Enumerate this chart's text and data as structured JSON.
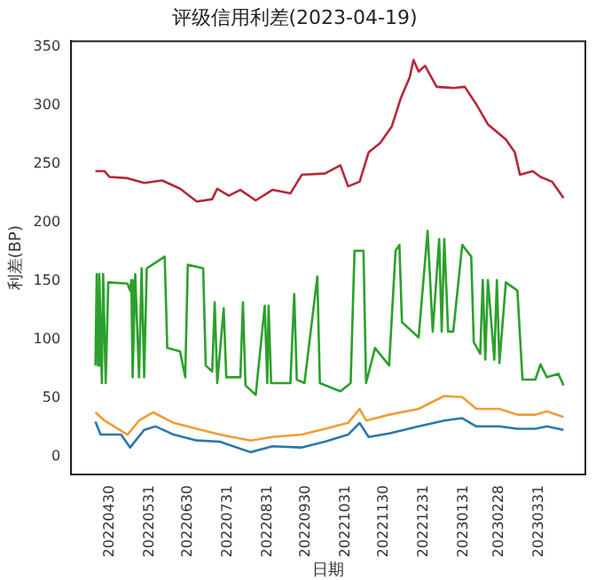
{
  "chart_data": {
    "type": "line",
    "title": "评级信用利差(2023-04-19)",
    "xlabel": "日期",
    "ylabel": "利差(BP)",
    "xlim": [
      "2022-03-31",
      "2023-05-06"
    ],
    "ylim": [
      -15,
      355
    ],
    "xticks": [
      {
        "value": "2022-04-30",
        "label": "20220430"
      },
      {
        "value": "2022-05-31",
        "label": "20220531"
      },
      {
        "value": "2022-06-30",
        "label": "20220630"
      },
      {
        "value": "2022-07-31",
        "label": "20220731"
      },
      {
        "value": "2022-08-31",
        "label": "20220831"
      },
      {
        "value": "2022-09-30",
        "label": "20220930"
      },
      {
        "value": "2022-10-31",
        "label": "20221031"
      },
      {
        "value": "2022-11-30",
        "label": "20221130"
      },
      {
        "value": "2022-12-31",
        "label": "20221231"
      },
      {
        "value": "2023-01-31",
        "label": "20230131"
      },
      {
        "value": "2023-02-28",
        "label": "20230228"
      },
      {
        "value": "2023-03-31",
        "label": "20230331"
      }
    ],
    "yticks": [
      0,
      50,
      100,
      150,
      200,
      250,
      300,
      350
    ],
    "series": [
      {
        "color": "#b5283a",
        "x": [
          "2022-04-19",
          "2022-04-26",
          "2022-04-30",
          "2022-05-14",
          "2022-05-27",
          "2022-06-10",
          "2022-06-24",
          "2022-07-07",
          "2022-07-19",
          "2022-07-23",
          "2022-08-01",
          "2022-08-10",
          "2022-08-22",
          "2022-09-04",
          "2022-09-18",
          "2022-09-27",
          "2022-10-15",
          "2022-10-27",
          "2022-11-02",
          "2022-11-11",
          "2022-11-18",
          "2022-11-27",
          "2022-12-06",
          "2022-12-13",
          "2022-12-20",
          "2022-12-23",
          "2022-12-27",
          "2023-01-01",
          "2023-01-10",
          "2023-01-23",
          "2023-02-01",
          "2023-02-10",
          "2023-02-19",
          "2023-03-05",
          "2023-03-12",
          "2023-03-16",
          "2023-03-26",
          "2023-04-01",
          "2023-04-10",
          "2023-04-19"
        ],
        "values": [
          244,
          244,
          239,
          238,
          234,
          236,
          229,
          218,
          220,
          229,
          223,
          228,
          219,
          228,
          225,
          241,
          242,
          249,
          231,
          235,
          260,
          268,
          282,
          306,
          324,
          339,
          329,
          334,
          316,
          315,
          316,
          301,
          284,
          271,
          260,
          241,
          244,
          239,
          235,
          221
        ]
      },
      {
        "color": "#2ca02c",
        "x": [
          "2022-04-19",
          "2022-04-20",
          "2022-04-21",
          "2022-04-22",
          "2022-04-24",
          "2022-04-25",
          "2022-04-27",
          "2022-04-29",
          "2022-05-14",
          "2022-05-16",
          "2022-05-17",
          "2022-05-18",
          "2022-05-20",
          "2022-05-23",
          "2022-05-25",
          "2022-05-27",
          "2022-05-29",
          "2022-06-12",
          "2022-06-14",
          "2022-06-24",
          "2022-06-28",
          "2022-06-30",
          "2022-07-12",
          "2022-07-14",
          "2022-07-19",
          "2022-07-21",
          "2022-07-23",
          "2022-07-28",
          "2022-07-30",
          "2022-08-10",
          "2022-08-12",
          "2022-08-14",
          "2022-08-22",
          "2022-08-29",
          "2022-08-31",
          "2022-09-01",
          "2022-09-03",
          "2022-09-18",
          "2022-09-21",
          "2022-09-23",
          "2022-09-29",
          "2022-10-09",
          "2022-10-11",
          "2022-10-27",
          "2022-11-04",
          "2022-11-07",
          "2022-11-14",
          "2022-11-16",
          "2022-11-23",
          "2022-12-04",
          "2022-12-09",
          "2022-12-12",
          "2022-12-14",
          "2022-12-22",
          "2022-12-27",
          "2023-01-03",
          "2023-01-07",
          "2023-01-12",
          "2023-01-14",
          "2023-01-16",
          "2023-01-19",
          "2023-01-23",
          "2023-01-30",
          "2023-02-06",
          "2023-02-08",
          "2023-02-13",
          "2023-02-15",
          "2023-02-17",
          "2023-02-19",
          "2023-02-24",
          "2023-02-26",
          "2023-02-28",
          "2023-03-05",
          "2023-03-14",
          "2023-03-18",
          "2023-03-28",
          "2023-04-01",
          "2023-04-06",
          "2023-04-15",
          "2023-04-19"
        ],
        "values": [
          78,
          156,
          78,
          156,
          63,
          156,
          63,
          149,
          148,
          142,
          151,
          68,
          156,
          68,
          161,
          68,
          161,
          171,
          93,
          90,
          68,
          164,
          161,
          78,
          73,
          132,
          63,
          127,
          68,
          68,
          132,
          61,
          53,
          129,
          63,
          129,
          63,
          63,
          139,
          66,
          63,
          154,
          63,
          56,
          63,
          176,
          176,
          63,
          93,
          78,
          176,
          181,
          115,
          107,
          102,
          193,
          107,
          186,
          107,
          186,
          107,
          107,
          181,
          171,
          98,
          88,
          151,
          83,
          151,
          83,
          151,
          80,
          149,
          142,
          66,
          66,
          79,
          68,
          71,
          61
        ]
      },
      {
        "color": "#f39c34",
        "x": [
          "2022-04-19",
          "2022-04-26",
          "2022-05-14",
          "2022-05-23",
          "2022-06-03",
          "2022-06-19",
          "2022-07-07",
          "2022-07-25",
          "2022-08-18",
          "2022-09-04",
          "2022-09-27",
          "2022-10-15",
          "2022-11-02",
          "2022-11-11",
          "2022-11-16",
          "2022-12-04",
          "2022-12-27",
          "2023-01-16",
          "2023-01-30",
          "2023-02-10",
          "2023-02-28",
          "2023-03-14",
          "2023-03-28",
          "2023-04-06",
          "2023-04-19"
        ],
        "values": [
          38,
          31,
          19,
          31,
          38,
          29,
          24,
          19,
          14,
          17,
          19,
          24,
          29,
          41,
          31,
          36,
          41,
          52,
          51,
          41,
          41,
          36,
          36,
          39,
          34
        ]
      },
      {
        "color": "#2b77ad",
        "x": [
          "2022-04-19",
          "2022-04-23",
          "2022-05-09",
          "2022-05-16",
          "2022-05-27",
          "2022-06-05",
          "2022-06-19",
          "2022-07-07",
          "2022-07-25",
          "2022-08-18",
          "2022-09-04",
          "2022-09-27",
          "2022-10-15",
          "2022-11-02",
          "2022-11-11",
          "2022-11-18",
          "2022-12-04",
          "2022-12-27",
          "2023-01-16",
          "2023-01-30",
          "2023-02-10",
          "2023-02-28",
          "2023-03-14",
          "2023-03-28",
          "2023-04-06",
          "2023-04-19"
        ],
        "values": [
          30,
          19,
          19,
          8,
          23,
          26,
          19,
          14,
          13,
          4,
          9,
          8,
          13,
          19,
          29,
          17,
          20,
          26,
          31,
          33,
          26,
          26,
          24,
          24,
          26,
          23
        ]
      }
    ]
  }
}
